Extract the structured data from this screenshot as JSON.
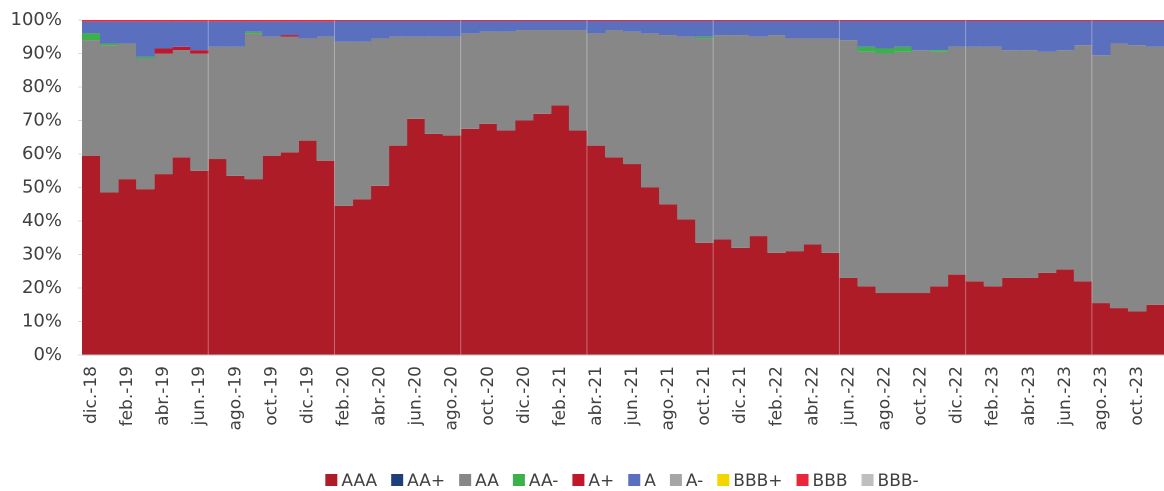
{
  "chart_data": {
    "type": "stacked-area-step",
    "categories": [
      "dic.-18",
      null,
      "feb.-19",
      null,
      "abr.-19",
      null,
      "jun.-19",
      null,
      "ago.-19",
      null,
      "oct.-19",
      null,
      "dic.-19",
      null,
      "feb.-20",
      null,
      "abr.-20",
      null,
      "jun.-20",
      null,
      "ago.-20",
      null,
      "oct.-20",
      null,
      "dic.-20",
      null,
      "feb.-21",
      null,
      "abr.-21",
      null,
      "jun.-21",
      null,
      "ago.-21",
      null,
      "oct.-21",
      null,
      "dic.-21",
      null,
      "feb.-22",
      null,
      "abr.-22",
      null,
      "jun.-22",
      null,
      "ago.-22",
      null,
      "oct.-22",
      null,
      "dic.-22",
      null,
      "feb.-23",
      null,
      "abr.-23",
      null,
      "jun.-23",
      null,
      "ago.-23",
      null,
      "oct.-23",
      null
    ],
    "series": [
      {
        "name": "AAA",
        "color": "#ae1c28",
        "values": [
          59.5,
          48.5,
          52.5,
          49.5,
          54,
          59,
          55,
          58.5,
          53.5,
          52.5,
          59.5,
          60.5,
          64,
          58,
          44.5,
          46.5,
          50.5,
          62.5,
          70.5,
          66,
          65.5,
          67.5,
          69,
          67,
          70,
          72,
          74.5,
          67,
          62.5,
          59,
          57,
          50,
          45,
          40.5,
          33.5,
          34.5,
          32,
          35.5,
          30.5,
          31,
          33,
          30.5,
          23,
          20.5,
          18.5,
          18.5,
          18.5,
          20.5,
          24,
          22,
          20.5,
          23,
          23,
          24.5,
          25.5,
          22,
          15.5,
          14,
          13,
          15
        ]
      },
      {
        "name": "AA+",
        "color": "#1f3f7a",
        "values": [
          0,
          0,
          0,
          0,
          0,
          0,
          0,
          0,
          0,
          0,
          0,
          0,
          0,
          0,
          0,
          0,
          0,
          0,
          0,
          0,
          0,
          0,
          0,
          0,
          0,
          0,
          0,
          0,
          0,
          0,
          0,
          0,
          0,
          0,
          0,
          0,
          0,
          0,
          0,
          0,
          0,
          0,
          0,
          0,
          0,
          0,
          0,
          0,
          0,
          0,
          0,
          0,
          0,
          0,
          0,
          0,
          0,
          0,
          0,
          0
        ]
      },
      {
        "name": "AA",
        "color": "#878787",
        "values": [
          34.5,
          44,
          40.5,
          39,
          36,
          32,
          35,
          33.5,
          38.5,
          43.5,
          35.5,
          34.5,
          30.5,
          37,
          49,
          47,
          44,
          32.5,
          24.5,
          29,
          29.5,
          28.5,
          27.5,
          29.5,
          27,
          25,
          22.5,
          30,
          33.5,
          38,
          39.5,
          46,
          50.5,
          54.5,
          61,
          61,
          63.5,
          59.5,
          65,
          63.5,
          61.5,
          64,
          71,
          70,
          71.5,
          72,
          72.5,
          70,
          68,
          70,
          71.5,
          68,
          68,
          66,
          65.5,
          70.5,
          74,
          79,
          79.5,
          77
        ]
      },
      {
        "name": "AA-",
        "color": "#3cb04a",
        "values": [
          2,
          0.5,
          0,
          0.5,
          0,
          0,
          0,
          0,
          0,
          0.5,
          0,
          0,
          0,
          0,
          0,
          0,
          0,
          0,
          0,
          0,
          0,
          0,
          0,
          0,
          0,
          0,
          0,
          0,
          0,
          0,
          0,
          0,
          0,
          0,
          0.5,
          0,
          0,
          0,
          0,
          0,
          0,
          0,
          0,
          1.5,
          1.5,
          1.5,
          0,
          0.5,
          0,
          0,
          0,
          0,
          0,
          0,
          0,
          0,
          0,
          0,
          0,
          0
        ]
      },
      {
        "name": "A+",
        "color": "#c0172b",
        "values": [
          0,
          0,
          0,
          0,
          1.5,
          1,
          1,
          0,
          0,
          0,
          0,
          0.5,
          0,
          0,
          0,
          0,
          0,
          0,
          0,
          0,
          0,
          0,
          0,
          0,
          0,
          0,
          0,
          0,
          0,
          0,
          0,
          0,
          0,
          0,
          0,
          0,
          0,
          0,
          0,
          0,
          0,
          0,
          0,
          0,
          0,
          0,
          0,
          0,
          0,
          0,
          0,
          0,
          0,
          0,
          0,
          0,
          0,
          0,
          0,
          0
        ]
      },
      {
        "name": "A",
        "color": "#5a6fbd",
        "values": [
          3.5,
          6.5,
          6.5,
          10.5,
          8,
          7.5,
          8.5,
          7.5,
          7.5,
          3,
          4.5,
          4,
          5,
          4.5,
          6.2,
          6.2,
          5.2,
          4.7,
          4.7,
          4.7,
          4.7,
          3.7,
          3.2,
          3.2,
          2.7,
          2.7,
          2.7,
          2.7,
          3.7,
          2.7,
          3.2,
          3.7,
          4.2,
          4.7,
          4.7,
          4.2,
          4.2,
          4.7,
          4.2,
          5.2,
          5.2,
          5.2,
          5.7,
          7.7,
          8.2,
          7.7,
          8.7,
          8.7,
          7.7,
          7.7,
          7.7,
          8.7,
          8.7,
          9.2,
          8.7,
          7.2,
          10.2,
          6.7,
          7.2,
          7.7
        ]
      },
      {
        "name": "A-",
        "color": "#a6a6a6",
        "values": [
          0,
          0,
          0,
          0,
          0,
          0,
          0,
          0,
          0,
          0,
          0,
          0,
          0,
          0,
          0,
          0,
          0,
          0,
          0,
          0,
          0,
          0,
          0,
          0,
          0,
          0,
          0,
          0,
          0,
          0,
          0,
          0,
          0,
          0,
          0,
          0,
          0,
          0,
          0,
          0,
          0,
          0,
          0,
          0,
          0,
          0,
          0,
          0,
          0,
          0,
          0,
          0,
          0,
          0,
          0,
          0,
          0,
          0,
          0,
          0
        ]
      },
      {
        "name": "BBB+",
        "color": "#f2d600",
        "values": [
          0,
          0,
          0,
          0,
          0,
          0,
          0,
          0,
          0,
          0,
          0,
          0,
          0,
          0,
          0,
          0,
          0,
          0,
          0,
          0,
          0,
          0,
          0,
          0,
          0,
          0,
          0,
          0,
          0,
          0,
          0,
          0,
          0,
          0,
          0,
          0,
          0,
          0,
          0,
          0,
          0,
          0,
          0,
          0,
          0,
          0,
          0,
          0,
          0,
          0,
          0,
          0,
          0,
          0,
          0,
          0,
          0,
          0,
          0,
          0
        ]
      },
      {
        "name": "BBB",
        "color": "#e8283a",
        "values": [
          0.5,
          0.5,
          0.5,
          0.5,
          0.5,
          0.5,
          0.5,
          0.5,
          0.5,
          0.5,
          0.5,
          0.5,
          0.5,
          0.5,
          0.3,
          0.3,
          0.3,
          0.3,
          0.3,
          0.3,
          0.3,
          0.3,
          0.3,
          0.3,
          0.3,
          0.3,
          0.3,
          0.3,
          0.3,
          0.3,
          0.3,
          0.3,
          0.3,
          0.3,
          0.3,
          0.3,
          0.3,
          0.3,
          0.3,
          0.3,
          0.3,
          0.3,
          0.3,
          0.3,
          0.3,
          0.3,
          0.3,
          0.3,
          0.3,
          0.3,
          0.3,
          0.3,
          0.3,
          0.3,
          0.3,
          0.3,
          0.3,
          0.3,
          0.3,
          0.3
        ]
      },
      {
        "name": "BBB-",
        "color": "#bfbfbf",
        "values": [
          0,
          0,
          0,
          0,
          0,
          0,
          0,
          0,
          0,
          0,
          0,
          0,
          0,
          0,
          0,
          0,
          0,
          0,
          0,
          0,
          0,
          0,
          0,
          0,
          0,
          0,
          0,
          0,
          0,
          0,
          0,
          0,
          0,
          0,
          0,
          0,
          0,
          0,
          0,
          0,
          0,
          0,
          0,
          0,
          0,
          0,
          0,
          0,
          0,
          0,
          0,
          0,
          0,
          0,
          0,
          0,
          0,
          0,
          0,
          0
        ]
      }
    ],
    "ylim": [
      0,
      100
    ],
    "yticks": [
      {
        "value": 0,
        "label": "0%"
      },
      {
        "value": 10,
        "label": "10%"
      },
      {
        "value": 20,
        "label": "20%"
      },
      {
        "value": 30,
        "label": "30%"
      },
      {
        "value": 40,
        "label": "40%"
      },
      {
        "value": 50,
        "label": "50%"
      },
      {
        "value": 60,
        "label": "60%"
      },
      {
        "value": 70,
        "label": "70%"
      },
      {
        "value": 80,
        "label": "80%"
      },
      {
        "value": 90,
        "label": "90%"
      },
      {
        "value": 100,
        "label": "100%"
      }
    ],
    "legend": "bottom"
  }
}
